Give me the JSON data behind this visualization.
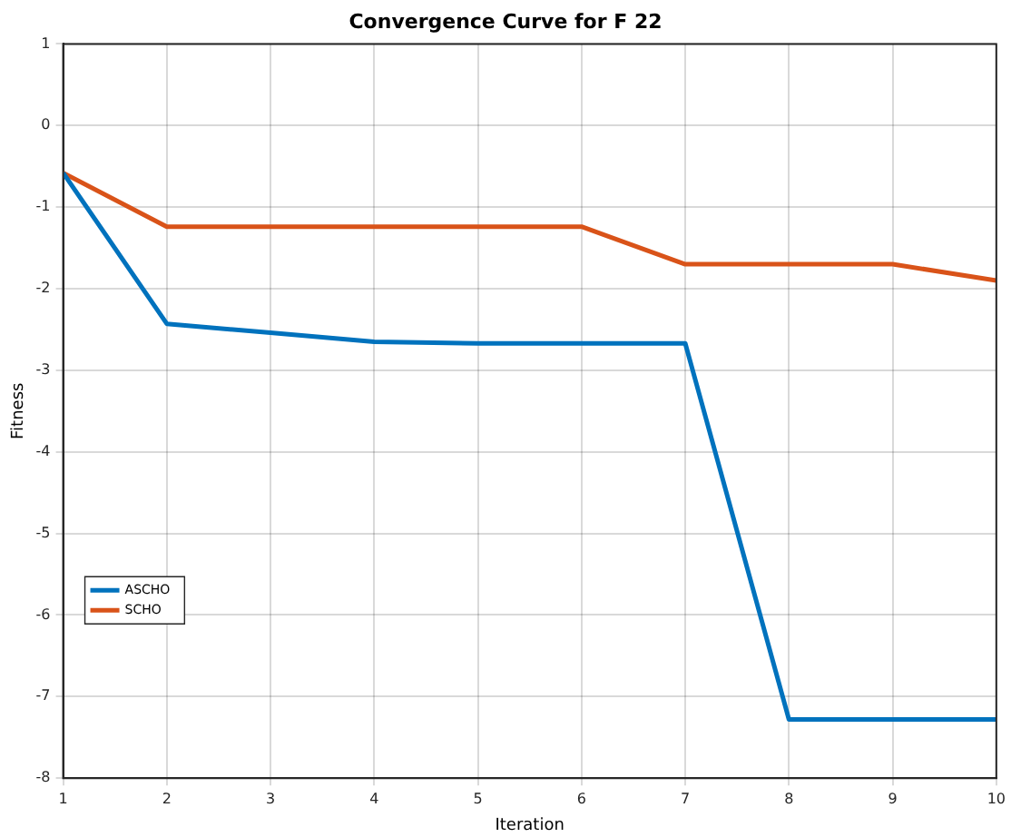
{
  "chart_data": {
    "type": "line",
    "title": "Convergence Curve for F 22",
    "xlabel": "Iteration",
    "ylabel": "Fitness",
    "x": [
      1,
      2,
      3,
      4,
      5,
      6,
      7,
      8,
      9,
      10
    ],
    "series": [
      {
        "name": "ASCHO",
        "color": "#0072bd",
        "values": [
          -0.58,
          -2.43,
          -2.54,
          -2.65,
          -2.67,
          -2.67,
          -2.67,
          -7.28,
          -7.28,
          -7.28
        ]
      },
      {
        "name": "SCHO",
        "color": "#d95319",
        "values": [
          -0.58,
          -1.24,
          -1.24,
          -1.24,
          -1.24,
          -1.24,
          -1.7,
          -1.7,
          -1.7,
          -1.9
        ]
      }
    ],
    "xlim": [
      1,
      10
    ],
    "xticks": [
      1,
      2,
      3,
      4,
      5,
      6,
      7,
      8,
      9,
      10
    ],
    "ylim": [
      -8,
      1
    ],
    "yticks": [
      -8,
      -7,
      -6,
      -5,
      -4,
      -3,
      -2,
      -1,
      0,
      1
    ],
    "grid": true,
    "legend": "bottom left",
    "marker": "none",
    "line_style": "solid"
  }
}
